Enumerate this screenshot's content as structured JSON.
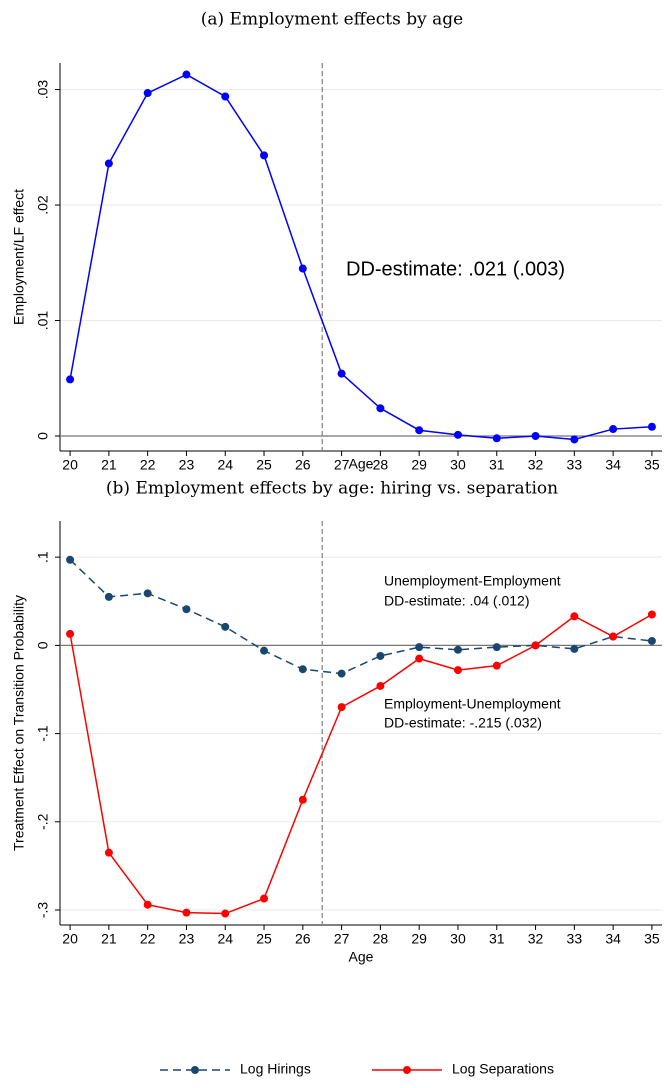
{
  "chart_data": [
    {
      "type": "line",
      "title": "(a) Employment effects by age",
      "x_label": "Age",
      "y_label": "Employment/LF effect",
      "x": [
        20,
        21,
        22,
        23,
        24,
        25,
        26,
        27,
        28,
        29,
        30,
        31,
        32,
        33,
        34,
        35
      ],
      "series": [
        {
          "color": "#0000ff",
          "linestyle": "solid",
          "values": [
            0.0049,
            0.0236,
            0.0297,
            0.0313,
            0.0294,
            0.0243,
            0.0145,
            0.0054,
            0.0024,
            0.0005,
            0.0001,
            -0.0002,
            0.0,
            -0.0003,
            0.0006,
            0.0008
          ]
        }
      ],
      "xlim": [
        19.74,
        35.26
      ],
      "ylim": [
        -0.0013,
        0.0323
      ],
      "xticks": [
        20,
        21,
        22,
        23,
        24,
        25,
        26,
        27,
        28,
        29,
        30,
        31,
        32,
        33,
        34,
        35
      ],
      "yticks": [
        0,
        {
          "value": 0.01,
          "label": ".01"
        },
        {
          "value": 0.02,
          "label": ".02"
        },
        {
          "value": 0.03,
          "label": ".03"
        }
      ],
      "grid": true,
      "hline": 0,
      "vline": 26.5,
      "annotations": [
        {
          "text": "DD-estimate: .021 (.003)",
          "color": "#595959"
        }
      ]
    },
    {
      "type": "line",
      "title": "(b) Employment effects by age: hiring vs. separation",
      "x_label": "Age",
      "y_label": "Treatment Effect on Transition Probability",
      "x": [
        20,
        21,
        22,
        23,
        24,
        25,
        26,
        27,
        28,
        29,
        30,
        31,
        32,
        33,
        34,
        35
      ],
      "series": [
        {
          "name": "Log Hirings",
          "color": "#1a476f",
          "linestyle": "dashed",
          "values": [
            0.097,
            0.055,
            0.059,
            0.041,
            0.021,
            -0.006,
            -0.027,
            -0.032,
            -0.012,
            -0.002,
            -0.005,
            -0.002,
            0.0,
            -0.004,
            0.01,
            0.005
          ]
        },
        {
          "name": "Log Separations",
          "color": "#ff0000",
          "linestyle": "solid",
          "values": [
            0.013,
            -0.235,
            -0.294,
            -0.303,
            -0.304,
            -0.287,
            -0.175,
            -0.07,
            -0.046,
            -0.015,
            -0.028,
            -0.023,
            0.0,
            0.033,
            0.01,
            0.035
          ]
        }
      ],
      "xlim": [
        19.74,
        35.26
      ],
      "ylim": [
        -0.317,
        0.141
      ],
      "xticks": [
        20,
        21,
        22,
        23,
        24,
        25,
        26,
        27,
        28,
        29,
        30,
        31,
        32,
        33,
        34,
        35
      ],
      "yticks": [
        {
          "value": -0.3,
          "label": "-.3"
        },
        {
          "value": -0.2,
          "label": "-.2"
        },
        {
          "value": -0.1,
          "label": "-.1"
        },
        0,
        {
          "value": 0.1,
          "label": ".1"
        }
      ],
      "grid": true,
      "hline": 0,
      "vline": 26.5,
      "annotations": [
        {
          "text": "Unemployment-Employment",
          "color": "#1a476f"
        },
        {
          "text": "DD-estimate: .04 (.012)",
          "color": "#1a476f"
        },
        {
          "text": "Employment-Unemployment",
          "color": "#ff0000"
        },
        {
          "text": "DD-estimate: -.215 (.032)",
          "color": "#ff0000"
        }
      ]
    }
  ]
}
